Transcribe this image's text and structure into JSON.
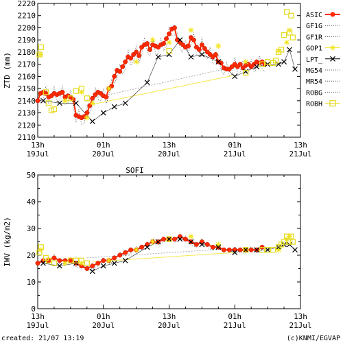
{
  "footer": {
    "created": "created: 21/07 13:19",
    "credit": "(c)KNMI/EGVAP"
  },
  "colors": {
    "ASIC": "#ff2a00",
    "GOP1": "#f2e51a",
    "ROBH": "#e6dc28",
    "dotted": "#555555",
    "LPT_": "#000000",
    "trend": "#f5e84a"
  },
  "chart_data": [
    {
      "type": "scatter",
      "title": "",
      "ylabel": "ZTD (mm)",
      "xlabel": "",
      "ylim": [
        2110,
        2220
      ],
      "yticks": [
        2110,
        2120,
        2130,
        2140,
        2150,
        2160,
        2170,
        2180,
        2190,
        2200,
        2210,
        2220
      ],
      "xlim": [
        0,
        48
      ],
      "xticks": [
        {
          "x": 0,
          "hour": "13h",
          "date": "19Jul"
        },
        {
          "x": 12,
          "hour": "01h",
          "date": "20Jul"
        },
        {
          "x": 24,
          "hour": "13h",
          "date": "20Jul"
        },
        {
          "x": 36,
          "hour": "01h",
          "date": "21Jul"
        },
        {
          "x": 48,
          "hour": "13h",
          "date": "21Jul"
        }
      ],
      "grid": false,
      "legend_position": "right",
      "legend": [
        "ASIC",
        "GF1G",
        "GF1R",
        "GOP1",
        "LPT_",
        "MG54",
        "MR54",
        "ROBG",
        "ROBH"
      ],
      "series": [
        {
          "name": "ASIC",
          "marker": "dot",
          "x": [
            0,
            0.5,
            1,
            1.5,
            2,
            2.5,
            3,
            3.5,
            4,
            4.5,
            5,
            5.5,
            6,
            6.5,
            7,
            7.5,
            8,
            8.5,
            9,
            9.5,
            10,
            10.5,
            11,
            11.5,
            12,
            12.5,
            13,
            13.5,
            14,
            14.5,
            15,
            15.5,
            16,
            16.5,
            17,
            17.5,
            18,
            18.5,
            19,
            19.5,
            20,
            20.5,
            21,
            21.5,
            22,
            22.5,
            23,
            23.5,
            24,
            24.5,
            25,
            25.5,
            26,
            26.5,
            27,
            27.5,
            28,
            28.5,
            29,
            29.5,
            30,
            30.5,
            31,
            31.5,
            32,
            32.5,
            33,
            33.5,
            34,
            34.5,
            35,
            35.5,
            36,
            36.5,
            37,
            37.5,
            38,
            38.5,
            39,
            39.5,
            40,
            40.5,
            41,
            41.5
          ],
          "y": [
            2140,
            2146,
            2147,
            2146,
            2143,
            2144,
            2146,
            2145,
            2146,
            2147,
            2143,
            2144,
            2143,
            2141,
            2128,
            2127,
            2126,
            2127,
            2130,
            2136,
            2142,
            2145,
            2147,
            2146,
            2144,
            2143,
            2150,
            2152,
            2160,
            2165,
            2164,
            2168,
            2172,
            2176,
            2175,
            2178,
            2180,
            2177,
            2184,
            2186,
            2187,
            2182,
            2186,
            2185,
            2184,
            2186,
            2187,
            2191,
            2195,
            2199,
            2200,
            2190,
            2188,
            2186,
            2184,
            2185,
            2192,
            2190,
            2184,
            2182,
            2186,
            2183,
            2180,
            2178,
            2176,
            2178,
            2172,
            2171,
            2167,
            2166,
            2166,
            2168,
            2170,
            2168,
            2170,
            2167,
            2169,
            2170,
            2168,
            2170,
            2172,
            2171,
            2172,
            2170
          ]
        },
        {
          "name": "GOP1",
          "marker": "star",
          "x": [
            0.5,
            5,
            8,
            9,
            10,
            13,
            18,
            21,
            24,
            28,
            33,
            38,
            44,
            45.5,
            46
          ],
          "y": [
            2178,
            2140,
            2147,
            2126,
            2138,
            2150,
            2172,
            2190,
            2188,
            2198,
            2185,
            2172,
            2181,
            2188,
            2198
          ]
        },
        {
          "name": "LPT_",
          "marker": "cross",
          "x": [
            1,
            4,
            7,
            10,
            12,
            14,
            16,
            20,
            22,
            24,
            26,
            28,
            30,
            33,
            36,
            38,
            40,
            42,
            44,
            45,
            46,
            47
          ],
          "y": [
            2140,
            2138,
            2138,
            2123,
            2130,
            2135,
            2138,
            2155,
            2176,
            2178,
            2190,
            2176,
            2178,
            2172,
            2160,
            2164,
            2168,
            2170,
            2170,
            2172,
            2182,
            2166
          ]
        },
        {
          "name": "ROBH",
          "marker": "square",
          "x": [
            0.3,
            0.6,
            1.5,
            2,
            2.5,
            3,
            6,
            7,
            8,
            9,
            24,
            38,
            41,
            42,
            43,
            43.5,
            44,
            44.5,
            45,
            45.5,
            46,
            46.3,
            46.6
          ],
          "y": [
            2178,
            2184,
            2147,
            2138,
            2132,
            2133,
            2142,
            2148,
            2150,
            2142,
            2181,
            2163,
            2170,
            2172,
            2171,
            2173,
            2180,
            2182,
            2194,
            2213,
            2196,
            2210,
            2192
          ]
        }
      ]
    },
    {
      "type": "scatter",
      "title": "SOFI",
      "ylabel": "IWV (kg/m2)",
      "xlabel": "",
      "ylim": [
        0,
        50
      ],
      "yticks": [
        0,
        10,
        20,
        30,
        40,
        50
      ],
      "xlim": [
        0,
        48
      ],
      "xticks": [
        {
          "x": 0,
          "hour": "13h",
          "date": "19Jul"
        },
        {
          "x": 12,
          "hour": "01h",
          "date": "20Jul"
        },
        {
          "x": 24,
          "hour": "13h",
          "date": "20Jul"
        },
        {
          "x": 36,
          "hour": "01h",
          "date": "21Jul"
        },
        {
          "x": 48,
          "hour": "13h",
          "date": "21Jul"
        }
      ],
      "grid": false,
      "series": [
        {
          "name": "ASIC",
          "marker": "dot",
          "x": [
            0,
            1,
            2,
            3,
            4,
            5,
            6,
            7,
            8,
            9,
            10,
            11,
            12,
            13,
            14,
            15,
            16,
            17,
            18,
            19,
            20,
            21,
            22,
            23,
            24,
            25,
            26,
            27,
            28,
            29,
            30,
            31,
            32,
            33,
            34,
            35,
            36,
            37,
            38,
            39,
            40,
            41
          ],
          "y": [
            17,
            18,
            18,
            19,
            18,
            18,
            18,
            17,
            16,
            15,
            16,
            17,
            18,
            18,
            19,
            20,
            21,
            22,
            22,
            23,
            24,
            25,
            25,
            26,
            26,
            26,
            27,
            26,
            25,
            24,
            25,
            24,
            23,
            23,
            22,
            22,
            22,
            22,
            22,
            22,
            22,
            23
          ]
        },
        {
          "name": "GOP1",
          "marker": "star",
          "x": [
            0.5,
            5,
            8,
            13,
            18,
            21,
            24,
            28,
            33,
            38,
            44,
            45.5,
            46
          ],
          "y": [
            22,
            17,
            17,
            18,
            22,
            25,
            26,
            27,
            24,
            22,
            22,
            26,
            27
          ]
        },
        {
          "name": "LPT_",
          "marker": "cross",
          "x": [
            1,
            4,
            7,
            10,
            12,
            14,
            16,
            20,
            22,
            24,
            26,
            28,
            30,
            33,
            36,
            38,
            40,
            42,
            44,
            45,
            46,
            47
          ],
          "y": [
            17,
            16,
            17,
            14,
            16,
            17,
            18,
            23,
            25,
            26,
            26,
            25,
            24,
            23,
            21,
            22,
            22,
            22,
            23,
            24,
            24,
            22
          ]
        },
        {
          "name": "ROBH",
          "marker": "square",
          "x": [
            0.3,
            0.6,
            1.5,
            2,
            3,
            6,
            7,
            8,
            9,
            24,
            38,
            41,
            42,
            43,
            44,
            44.5,
            45,
            45.5,
            46,
            46.3,
            46.6
          ],
          "y": [
            21,
            23,
            19,
            18,
            17,
            18,
            18,
            18,
            17,
            26,
            22,
            22,
            22,
            22,
            23,
            24,
            25,
            27,
            25,
            27,
            25
          ]
        }
      ]
    }
  ]
}
